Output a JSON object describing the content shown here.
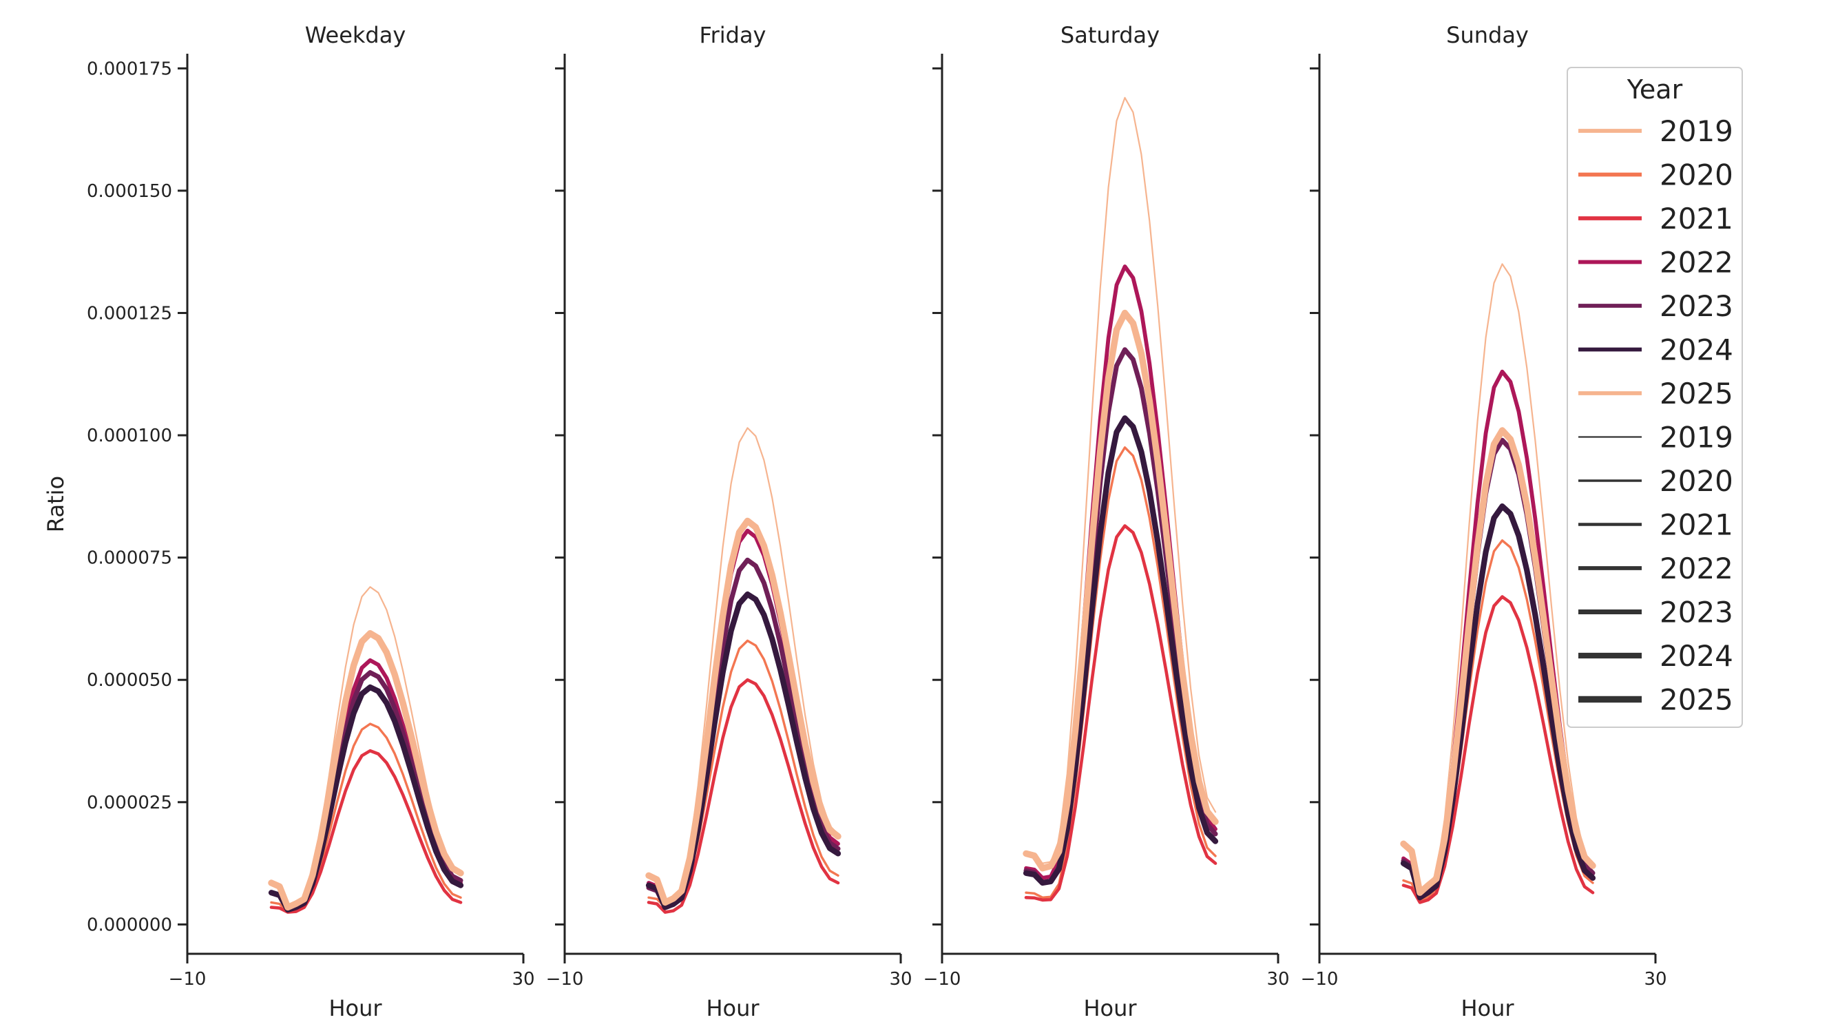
{
  "chart_data": {
    "type": "line",
    "ylabel": "Ratio",
    "xlabel": "Hour",
    "xlim": [
      -10,
      30
    ],
    "ylim": [
      -6e-06,
      0.000178
    ],
    "xticks": [
      -10,
      30
    ],
    "xtick_labels": [
      "−10",
      "30"
    ],
    "yticks": [
      0,
      2.5e-05,
      5e-05,
      7.5e-05,
      0.0001,
      0.000125,
      0.00015,
      0.000175
    ],
    "ytick_labels": [
      "0.000000",
      "0.000025",
      "0.000050",
      "0.000075",
      "0.000100",
      "0.000125",
      "0.000150",
      "0.000175"
    ],
    "grid": false,
    "legend": {
      "title": "Year",
      "placement": "top-right",
      "hue_entries": [
        {
          "label": "2019",
          "color": "#f6b48f"
        },
        {
          "label": "2020",
          "color": "#f37651"
        },
        {
          "label": "2021",
          "color": "#e13342"
        },
        {
          "label": "2022",
          "color": "#ad1759"
        },
        {
          "label": "2023",
          "color": "#701f57"
        },
        {
          "label": "2024",
          "color": "#35193e"
        },
        {
          "label": "2025",
          "color": "#f6b48f"
        }
      ],
      "size_entries": [
        {
          "label": "2019",
          "width": 1
        },
        {
          "label": "2020",
          "width": 2
        },
        {
          "label": "2021",
          "width": 3
        },
        {
          "label": "2022",
          "width": 4
        },
        {
          "label": "2023",
          "width": 5
        },
        {
          "label": "2024",
          "width": 6
        },
        {
          "label": "2025",
          "width": 7
        }
      ]
    },
    "panels": [
      {
        "title": "Weekday",
        "series": [
          {
            "name": "2019",
            "color": "#f6b48f",
            "width": 1,
            "peak": 6.9e-05,
            "end": 1e-05,
            "base": 3e-06,
            "start": 8.5e-06
          },
          {
            "name": "2020",
            "color": "#f37651",
            "width": 2,
            "peak": 4.1e-05,
            "end": 5.5e-06,
            "base": 2.5e-06,
            "start": 4.5e-06
          },
          {
            "name": "2021",
            "color": "#e13342",
            "width": 3,
            "peak": 3.55e-05,
            "end": 4.5e-06,
            "base": 2.5e-06,
            "start": 3.5e-06
          },
          {
            "name": "2022",
            "color": "#ad1759",
            "width": 4,
            "peak": 5.4e-05,
            "end": 8.5e-06,
            "base": 3e-06,
            "start": 6.5e-06
          },
          {
            "name": "2023",
            "color": "#701f57",
            "width": 5,
            "peak": 5.15e-05,
            "end": 9e-06,
            "base": 3e-06,
            "start": 6.5e-06
          },
          {
            "name": "2024",
            "color": "#35193e",
            "width": 6,
            "peak": 4.85e-05,
            "end": 8e-06,
            "base": 3e-06,
            "start": 6.5e-06
          },
          {
            "name": "2025",
            "color": "#f6b48f",
            "width": 7,
            "peak": 5.95e-05,
            "end": 1.05e-05,
            "base": 3.5e-06,
            "start": 8.5e-06
          }
        ]
      },
      {
        "title": "Friday",
        "series": [
          {
            "name": "2019",
            "color": "#f6b48f",
            "width": 1,
            "peak": 0.0001015,
            "end": 1.85e-05,
            "base": 4e-06,
            "start": 1e-05
          },
          {
            "name": "2020",
            "color": "#f37651",
            "width": 2,
            "peak": 5.8e-05,
            "end": 1e-05,
            "base": 3.5e-06,
            "start": 5.5e-06
          },
          {
            "name": "2021",
            "color": "#e13342",
            "width": 3,
            "peak": 5e-05,
            "end": 8.5e-06,
            "base": 2.5e-06,
            "start": 4.5e-06
          },
          {
            "name": "2022",
            "color": "#ad1759",
            "width": 4,
            "peak": 8.05e-05,
            "end": 1.65e-05,
            "base": 4e-06,
            "start": 8.5e-06
          },
          {
            "name": "2023",
            "color": "#701f57",
            "width": 5,
            "peak": 7.45e-05,
            "end": 1.55e-05,
            "base": 3.5e-06,
            "start": 7.5e-06
          },
          {
            "name": "2024",
            "color": "#35193e",
            "width": 6,
            "peak": 6.75e-05,
            "end": 1.45e-05,
            "base": 3.5e-06,
            "start": 8e-06
          },
          {
            "name": "2025",
            "color": "#f6b48f",
            "width": 7,
            "peak": 8.25e-05,
            "end": 1.8e-05,
            "base": 4.5e-06,
            "start": 1e-05
          }
        ]
      },
      {
        "title": "Saturday",
        "series": [
          {
            "name": "2019",
            "color": "#f6b48f",
            "width": 1,
            "peak": 0.000169,
            "end": 2.3e-05,
            "base": 1.25e-05,
            "start": 1.45e-05
          },
          {
            "name": "2020",
            "color": "#f37651",
            "width": 2,
            "peak": 9.75e-05,
            "end": 1.4e-05,
            "base": 5.5e-06,
            "start": 6.5e-06
          },
          {
            "name": "2021",
            "color": "#e13342",
            "width": 3,
            "peak": 8.15e-05,
            "end": 1.25e-05,
            "base": 5e-06,
            "start": 5.5e-06
          },
          {
            "name": "2022",
            "color": "#ad1759",
            "width": 4,
            "peak": 0.0001345,
            "end": 1.95e-05,
            "base": 9.5e-06,
            "start": 1.15e-05
          },
          {
            "name": "2023",
            "color": "#701f57",
            "width": 5,
            "peak": 0.0001175,
            "end": 1.85e-05,
            "base": 8.5e-06,
            "start": 1.1e-05
          },
          {
            "name": "2024",
            "color": "#35193e",
            "width": 6,
            "peak": 0.0001035,
            "end": 1.7e-05,
            "base": 8.5e-06,
            "start": 1.05e-05
          },
          {
            "name": "2025",
            "color": "#f6b48f",
            "width": 7,
            "peak": 0.000125,
            "end": 2.1e-05,
            "base": 1.15e-05,
            "start": 1.45e-05
          }
        ]
      },
      {
        "title": "Sunday",
        "series": [
          {
            "name": "2019",
            "color": "#f6b48f",
            "width": 1,
            "peak": 0.000135,
            "end": 1.2e-05,
            "base": 6.5e-06,
            "start": 1.65e-05
          },
          {
            "name": "2020",
            "color": "#f37651",
            "width": 2,
            "peak": 7.85e-05,
            "end": 8.5e-06,
            "base": 5e-06,
            "start": 9e-06
          },
          {
            "name": "2021",
            "color": "#e13342",
            "width": 3,
            "peak": 6.7e-05,
            "end": 6.5e-06,
            "base": 4.5e-06,
            "start": 8e-06
          },
          {
            "name": "2022",
            "color": "#ad1759",
            "width": 4,
            "peak": 0.000113,
            "end": 1.05e-05,
            "base": 5.5e-06,
            "start": 1.35e-05
          },
          {
            "name": "2023",
            "color": "#701f57",
            "width": 5,
            "peak": 9.9e-05,
            "end": 1.05e-05,
            "base": 5.5e-06,
            "start": 1.3e-05
          },
          {
            "name": "2024",
            "color": "#35193e",
            "width": 6,
            "peak": 8.55e-05,
            "end": 9.5e-06,
            "base": 5.5e-06,
            "start": 1.25e-05
          },
          {
            "name": "2025",
            "color": "#f6b48f",
            "width": 7,
            "peak": 0.000101,
            "end": 1.2e-05,
            "base": 6.5e-06,
            "start": 1.65e-05
          }
        ]
      }
    ]
  }
}
